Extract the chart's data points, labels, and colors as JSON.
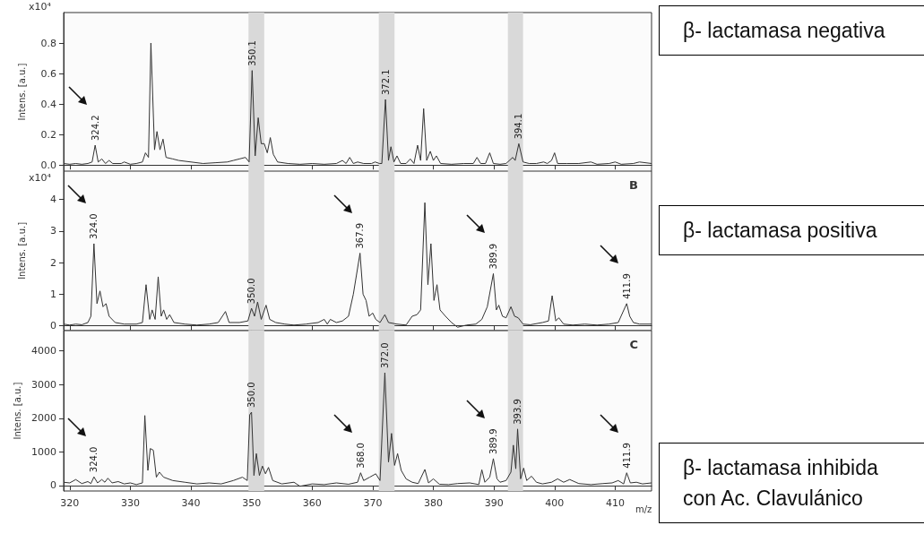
{
  "chart_data": [
    {
      "type": "line",
      "ylabel": "Intens. [a.u.]",
      "annotations": [
        "x10⁴",
        "β- lactamasa negativa",
        {
          "text": "324.2",
          "x": 324.2,
          "y": 0.13
        },
        {
          "text": "350.1",
          "x": 350.1,
          "y": 0.62
        },
        {
          "text": "372.1",
          "x": 372.1,
          "y": 0.43
        },
        {
          "text": "394.1",
          "x": 394.1,
          "y": 0.14
        }
      ],
      "x": [
        319,
        320,
        321,
        322,
        323,
        323.7,
        324.2,
        324.7,
        325.3,
        325.9,
        326.5,
        327.1,
        328.5,
        329,
        330,
        331,
        332,
        332.5,
        333.0,
        333.4,
        334.0,
        334.4,
        334.9,
        335.4,
        335.9,
        337,
        338,
        340,
        342,
        344,
        346,
        347,
        348,
        349,
        349.6,
        350.1,
        350.6,
        351.1,
        351.6,
        352.1,
        352.6,
        353.1,
        353.6,
        354.3,
        356,
        358,
        360,
        362,
        364,
        365,
        365.6,
        366.2,
        366.8,
        367.5,
        368.5,
        369.8,
        370.4,
        371.1,
        371.5,
        372.1,
        372.6,
        373.0,
        373.5,
        374.0,
        374.6,
        375.5,
        376.2,
        376.8,
        377.4,
        377.9,
        378.4,
        378.9,
        379.5,
        380.0,
        380.5,
        381.2,
        383,
        385,
        386.6,
        387.2,
        387.8,
        388.6,
        389.3,
        389.9,
        391,
        392,
        393.1,
        393.5,
        394.1,
        394.8,
        395.8,
        397,
        398.2,
        398.8,
        399.5,
        400,
        400.5,
        402,
        404,
        406,
        407,
        409,
        410,
        411,
        413,
        414,
        416
      ],
      "series": [
        {
          "color": "#333333",
          "values": [
            0.01,
            0.005,
            0.01,
            0.005,
            0.01,
            0.02,
            0.13,
            0.02,
            0.04,
            0.01,
            0.03,
            0.01,
            0.01,
            0.02,
            0.005,
            0.01,
            0.02,
            0.08,
            0.05,
            0.8,
            0.1,
            0.22,
            0.1,
            0.17,
            0.05,
            0.04,
            0.03,
            0.02,
            0.01,
            0.015,
            0.02,
            0.03,
            0.04,
            0.05,
            0.02,
            0.62,
            0.06,
            0.31,
            0.14,
            0.14,
            0.08,
            0.18,
            0.07,
            0.02,
            0.01,
            0.005,
            0.01,
            0.005,
            0.01,
            0.03,
            0.01,
            0.05,
            0.01,
            0.02,
            0.01,
            0.01,
            0.02,
            0.01,
            0.01,
            0.43,
            0.03,
            0.12,
            0.02,
            0.06,
            0.01,
            0.01,
            0.04,
            0.01,
            0.13,
            0.03,
            0.37,
            0.03,
            0.09,
            0.03,
            0.06,
            0.01,
            0.005,
            0.01,
            0.01,
            0.05,
            0.01,
            0.01,
            0.08,
            0.01,
            0.005,
            0.01,
            0.05,
            0.03,
            0.14,
            0.02,
            0.01,
            0.01,
            0.02,
            0.01,
            0.03,
            0.08,
            0.01,
            0.01,
            0.01,
            0.02,
            0.005,
            0.01,
            0.02,
            0.005,
            0.01,
            0.02,
            0.01
          ]
        }
      ],
      "xlim": [
        319,
        416
      ],
      "xticks": [
        320,
        330,
        340,
        350,
        360,
        370,
        380,
        390,
        400,
        410
      ],
      "ylim": [
        -0.04,
        1.0
      ],
      "yticks": [
        {
          "value": 0,
          "label": "0.0"
        },
        0.2,
        0.4,
        0.6,
        0.8
      ],
      "bands": [
        {
          "axis": "x",
          "from": 349.5,
          "to": 352.1,
          "color": "#d9d9d9"
        },
        {
          "axis": "x",
          "from": 371.0,
          "to": 373.6,
          "color": "#d9d9d9"
        },
        {
          "axis": "x",
          "from": 392.3,
          "to": 394.8,
          "color": "#d9d9d9"
        }
      ],
      "marker": "none",
      "tick_labels": "y"
    },
    {
      "type": "line",
      "title": "B",
      "ylabel": "Intens. [a.u.]",
      "annotations": [
        "x10⁴",
        "β- lactamasa positiva",
        {
          "text": "324.0",
          "x": 324.0,
          "y": 2.6
        },
        {
          "text": "350.0",
          "x": 350.0,
          "y": 0.55
        },
        {
          "text": "367.9",
          "x": 367.9,
          "y": 2.3
        },
        {
          "text": "389.9",
          "x": 389.9,
          "y": 1.65
        },
        {
          "text": "411.9",
          "x": 411.9,
          "y": 0.7
        }
      ],
      "x": [
        319,
        320,
        321,
        322,
        323,
        323.5,
        324.0,
        324.5,
        325.0,
        325.5,
        326,
        326.5,
        327.5,
        329,
        331,
        332,
        332.6,
        333.2,
        333.6,
        334.1,
        334.6,
        335.1,
        335.5,
        336,
        336.5,
        337.2,
        339,
        341,
        343,
        344.5,
        345.7,
        346.3,
        348,
        349.4,
        350.0,
        350.5,
        351.0,
        351.6,
        352.4,
        353,
        354,
        355.5,
        357,
        359,
        361,
        362,
        362.5,
        363,
        364,
        365,
        366,
        366.8,
        367.9,
        368.4,
        368.9,
        369.4,
        370,
        370.5,
        371.2,
        372.0,
        372.6,
        374,
        375.5,
        376.5,
        377.3,
        377.9,
        378.6,
        379.1,
        379.6,
        380.1,
        380.6,
        381.1,
        382,
        383,
        384,
        385.5,
        387,
        388,
        388.9,
        389.9,
        390.4,
        390.8,
        391.4,
        392,
        392.8,
        393.4,
        394,
        394.8,
        396,
        398,
        399,
        399.6,
        400.2,
        400.7,
        401.5,
        403,
        405,
        407,
        409,
        410.5,
        411.9,
        412.4,
        413,
        414,
        416
      ],
      "series": [
        {
          "color": "#333333",
          "values": [
            0.05,
            0.02,
            0.05,
            0.03,
            0.1,
            0.3,
            2.6,
            0.7,
            1.1,
            0.6,
            0.7,
            0.3,
            0.1,
            0.05,
            0.05,
            0.1,
            1.3,
            0.2,
            0.5,
            0.2,
            1.55,
            0.3,
            0.5,
            0.2,
            0.35,
            0.1,
            0.05,
            0.02,
            0.05,
            0.1,
            0.45,
            0.1,
            0.1,
            0.15,
            0.55,
            0.3,
            0.75,
            0.2,
            0.65,
            0.2,
            0.1,
            0.05,
            0.02,
            0.05,
            0.1,
            0.2,
            0.05,
            0.2,
            0.1,
            0.15,
            0.3,
            1.0,
            2.3,
            1.0,
            0.8,
            0.3,
            0.4,
            0.2,
            0.1,
            0.35,
            0.1,
            0.05,
            0.02,
            0.3,
            0.35,
            0.5,
            3.9,
            1.3,
            2.6,
            0.8,
            1.3,
            0.5,
            0.3,
            0.1,
            -0.05,
            0.02,
            0.05,
            0.2,
            0.6,
            1.65,
            0.5,
            0.65,
            0.3,
            0.25,
            0.6,
            0.3,
            0.25,
            0.05,
            0.03,
            0.1,
            0.15,
            0.95,
            0.15,
            0.25,
            0.05,
            0.02,
            0.05,
            0.02,
            0.05,
            0.1,
            0.7,
            0.3,
            0.1,
            0.05,
            0.05
          ]
        }
      ],
      "xlim": [
        319,
        416
      ],
      "xticks": [
        320,
        330,
        340,
        350,
        360,
        370,
        380,
        390,
        400,
        410
      ],
      "ylim": [
        -0.15,
        4.9
      ],
      "yticks": [
        0,
        1,
        2,
        3,
        4
      ],
      "bands": [
        {
          "axis": "x",
          "from": 349.5,
          "to": 352.1,
          "color": "#d9d9d9"
        },
        {
          "axis": "x",
          "from": 371.0,
          "to": 373.6,
          "color": "#d9d9d9"
        },
        {
          "axis": "x",
          "from": 392.3,
          "to": 394.8,
          "color": "#d9d9d9"
        }
      ],
      "marker": "none",
      "tick_labels": "y"
    },
    {
      "type": "line",
      "title": "C",
      "xlabel": "m/z",
      "ylabel": "Intens. [a.u.]",
      "annotations": [
        "β- lactamasa inhibida con Ac. Clavulánico",
        {
          "text": "324.0",
          "x": 324.0,
          "y": 260
        },
        {
          "text": "350.0",
          "x": 350.0,
          "y": 2180
        },
        {
          "text": "368.0",
          "x": 368.0,
          "y": 380
        },
        {
          "text": "372.0",
          "x": 372.0,
          "y": 3350
        },
        {
          "text": "389.9",
          "x": 389.9,
          "y": 800
        },
        {
          "text": "393.9",
          "x": 393.9,
          "y": 1680
        },
        {
          "text": "411.9",
          "x": 411.9,
          "y": 380
        }
      ],
      "x": [
        319,
        320,
        321,
        322,
        323,
        323.5,
        324.0,
        324.6,
        325.3,
        325.8,
        326.3,
        327,
        328,
        329,
        330,
        331,
        332,
        332.4,
        332.9,
        333.3,
        333.8,
        334.3,
        334.8,
        335.5,
        337,
        339,
        341,
        343,
        345,
        347,
        348.5,
        349.3,
        349.7,
        350.0,
        350.4,
        350.8,
        351.3,
        351.8,
        352.3,
        352.8,
        353.5,
        355,
        357,
        358,
        360,
        362,
        364,
        366,
        367.5,
        368.0,
        368.5,
        369.5,
        370.5,
        371.2,
        372.0,
        372.6,
        373.1,
        373.6,
        374.1,
        374.7,
        375.5,
        376.5,
        377.5,
        378.6,
        379.2,
        380,
        381,
        382.5,
        384,
        386,
        387.5,
        388.0,
        388.5,
        389.3,
        389.9,
        390.5,
        391,
        392,
        392.8,
        393.2,
        393.6,
        393.9,
        394.4,
        394.9,
        395.4,
        396.2,
        397,
        398,
        399.5,
        400.5,
        401.5,
        402.5,
        404,
        406,
        408,
        409.5,
        410.5,
        411.4,
        411.9,
        412.5,
        413.5,
        414.5,
        416
      ],
      "series": [
        {
          "color": "#333333",
          "values": [
            100,
            80,
            180,
            60,
            120,
            60,
            260,
            80,
            180,
            100,
            220,
            80,
            120,
            50,
            80,
            30,
            80,
            2080,
            450,
            1100,
            1050,
            250,
            400,
            250,
            150,
            100,
            50,
            80,
            50,
            150,
            250,
            150,
            2100,
            2180,
            300,
            950,
            300,
            580,
            350,
            540,
            150,
            50,
            100,
            -20,
            50,
            30,
            80,
            40,
            100,
            380,
            150,
            250,
            350,
            150,
            3350,
            700,
            1550,
            600,
            950,
            450,
            200,
            100,
            60,
            480,
            80,
            200,
            40,
            30,
            60,
            80,
            30,
            470,
            100,
            250,
            800,
            200,
            100,
            150,
            400,
            1200,
            500,
            1680,
            200,
            520,
            150,
            280,
            100,
            50,
            100,
            200,
            100,
            180,
            60,
            30,
            60,
            80,
            150,
            50,
            380,
            80,
            100,
            50,
            80
          ]
        }
      ],
      "xlim": [
        319,
        416
      ],
      "xticks": [
        320,
        330,
        340,
        350,
        360,
        370,
        380,
        390,
        400,
        410
      ],
      "ylim": [
        -160,
        4600
      ],
      "yticks": [
        0,
        1000,
        2000,
        3000,
        4000
      ],
      "bands": [
        {
          "axis": "x",
          "from": 349.5,
          "to": 352.1,
          "color": "#d9d9d9"
        },
        {
          "axis": "x",
          "from": 371.0,
          "to": 373.6,
          "color": "#d9d9d9"
        },
        {
          "axis": "x",
          "from": 392.3,
          "to": 394.8,
          "color": "#d9d9d9"
        }
      ],
      "marker": "none"
    }
  ]
}
